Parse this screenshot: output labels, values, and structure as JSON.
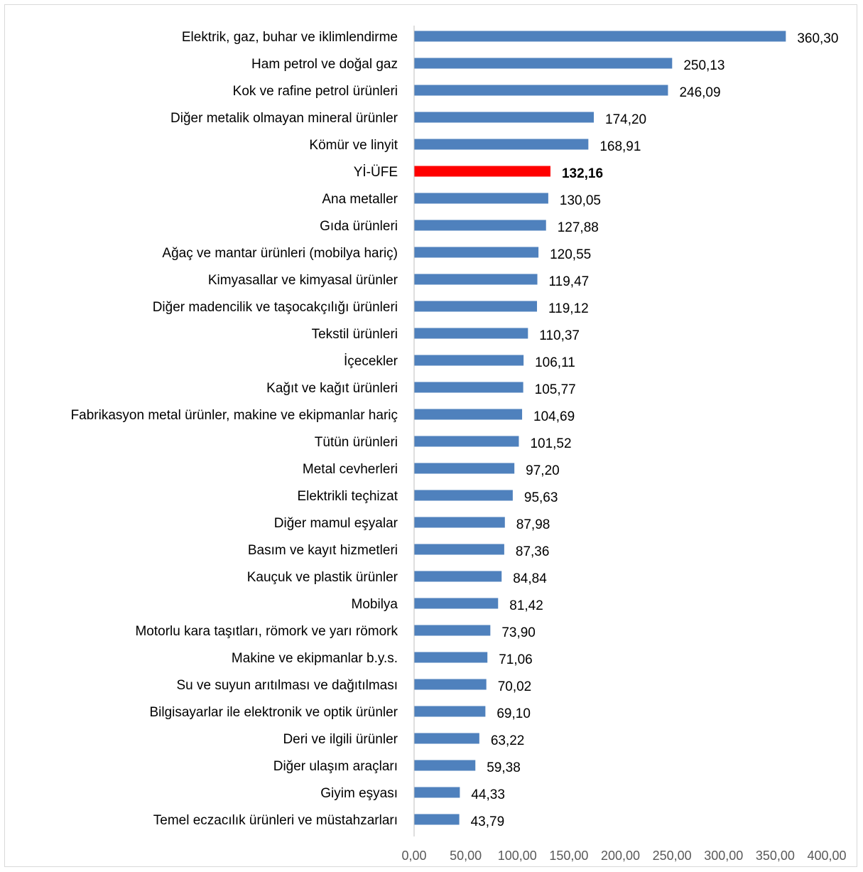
{
  "chart_data": {
    "type": "bar",
    "orientation": "horizontal",
    "categories": [
      "Elektrik, gaz, buhar ve iklimlendirme",
      "Ham petrol ve doğal gaz",
      "Kok ve rafine petrol ürünleri",
      "Diğer metalik olmayan mineral ürünler",
      "Kömür ve linyit",
      "Yİ-ÜFE",
      "Ana metaller",
      "Gıda ürünleri",
      "Ağaç ve mantar ürünleri (mobilya hariç)",
      "Kimyasallar ve kimyasal ürünler",
      "Diğer madencilik ve taşocakçılığı ürünleri",
      "Tekstil ürünleri",
      "İçecekler",
      "Kağıt ve kağıt ürünleri",
      "Fabrikasyon metal ürünler, makine ve ekipmanlar hariç",
      "Tütün ürünleri",
      "Metal cevherleri",
      "Elektrikli teçhizat",
      "Diğer mamul eşyalar",
      "Basım ve kayıt hizmetleri",
      "Kauçuk ve plastik ürünler",
      "Mobilya",
      "Motorlu kara taşıtları, römork ve yarı römork",
      "Makine ve ekipmanlar b.y.s.",
      "Su ve suyun arıtılması ve dağıtılması",
      "Bilgisayarlar ile elektronik ve optik ürünler",
      "Deri ve ilgili ürünler",
      "Diğer ulaşım araçları",
      "Giyim eşyası",
      "Temel eczacılık ürünleri ve müstahzarları"
    ],
    "values": [
      360.3,
      250.13,
      246.09,
      174.2,
      168.91,
      132.16,
      130.05,
      127.88,
      120.55,
      119.47,
      119.12,
      110.37,
      106.11,
      105.77,
      104.69,
      101.52,
      97.2,
      95.63,
      87.98,
      87.36,
      84.84,
      81.42,
      73.9,
      71.06,
      70.02,
      69.1,
      63.22,
      59.38,
      44.33,
      43.79
    ],
    "value_labels": [
      "360,30",
      "250,13",
      "246,09",
      "174,20",
      "168,91",
      "132,16",
      "130,05",
      "127,88",
      "120,55",
      "119,47",
      "119,12",
      "110,37",
      "106,11",
      "105,77",
      "104,69",
      "101,52",
      "97,20",
      "95,63",
      "87,98",
      "87,36",
      "84,84",
      "81,42",
      "73,90",
      "71,06",
      "70,02",
      "69,10",
      "63,22",
      "59,38",
      "44,33",
      "43,79"
    ],
    "highlight_category": "Yİ-ÜFE",
    "xlim": [
      0,
      400
    ],
    "x_ticks": [
      "0,00",
      "50,00",
      "100,00",
      "150,00",
      "200,00",
      "250,00",
      "300,00",
      "350,00",
      "400,00"
    ],
    "grid": false,
    "title": "",
    "xlabel": "",
    "ylabel": "",
    "colors": {
      "bar": "#4f81bd",
      "highlight": "#ff0000",
      "axis": "#bfbfbf"
    }
  }
}
